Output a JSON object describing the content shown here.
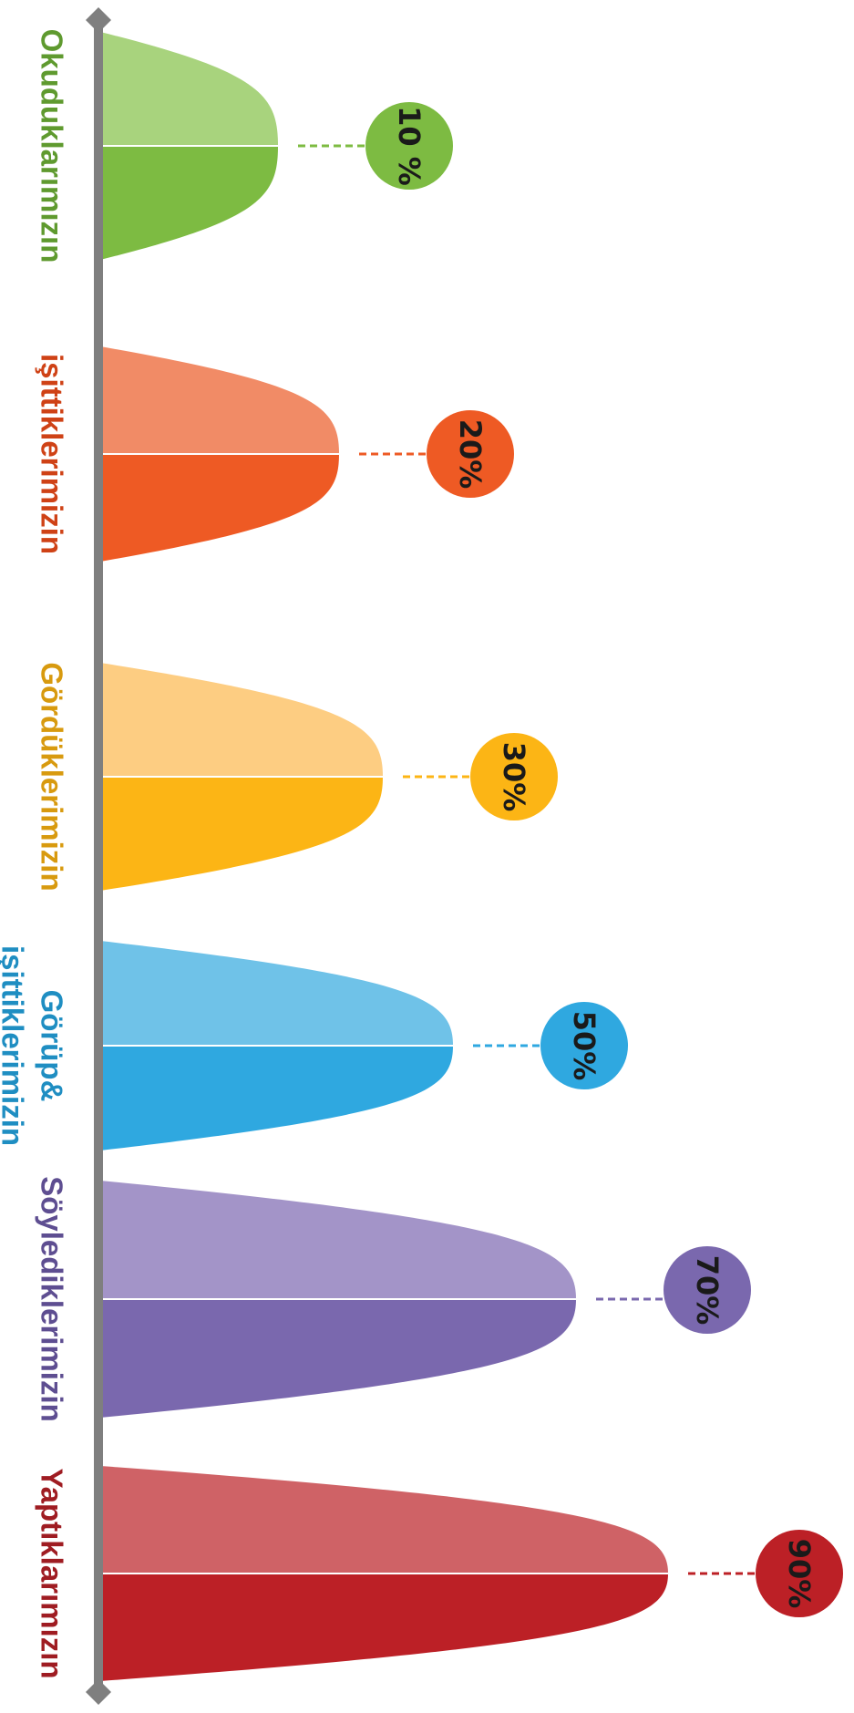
{
  "chart_data": {
    "type": "bar",
    "orientation": "vertical-stack, rotated 90deg clockwise",
    "title": "",
    "xlabel": "",
    "ylabel": "",
    "ylim": [
      0,
      100
    ],
    "grid": false,
    "categories": [
      "Okuduklarımızın",
      "işittiklerimizin",
      "Gördüklerimizin",
      "Görüp&",
      "Söylediklerimizin",
      "Yaptıklarımızın"
    ],
    "extra_category_lines": [
      "",
      "",
      "",
      "işittiklerimizin",
      "",
      ""
    ],
    "values": [
      10,
      20,
      30,
      50,
      70,
      90
    ],
    "value_labels": [
      "10 %",
      "20%",
      "30%",
      "50%",
      "70%",
      "90%"
    ],
    "colors": {
      "dark": [
        "#7dbb42",
        "#ee5a24",
        "#fcb515",
        "#2fa8e0",
        "#7a68ae",
        "#bc2026"
      ],
      "light": [
        "#a8d37d",
        "#f18b66",
        "#fdcd82",
        "#6fc2e8",
        "#a394c8",
        "#cf6266"
      ],
      "text": [
        "#5f9a2f",
        "#cf4216",
        "#d89a0f",
        "#1f8ec2",
        "#5e4e91",
        "#9f1c22"
      ],
      "axis": "#7f7f7f"
    }
  }
}
